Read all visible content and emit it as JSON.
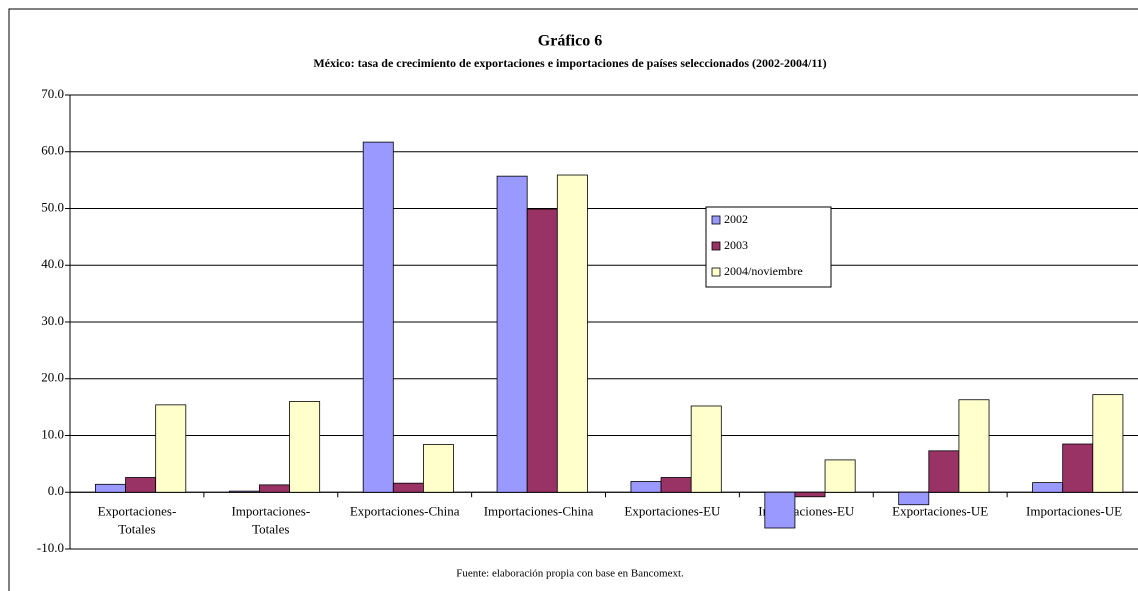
{
  "chart_data": {
    "type": "bar",
    "title": "Gráfico 6",
    "subtitle": "México: tasa de crecimiento de exportaciones e importaciones de países seleccionados (2002-2004/11)",
    "note": "Fuente: elaboración propia con base en Bancomext.",
    "categories": [
      "Exportaciones-\nTotales",
      "Importaciones-\nTotales",
      "Exportaciones-China",
      "Importaciones-China",
      "Exportaciones-EU",
      "Importaciones-EU",
      "Exportaciones-UE",
      "Importaciones-UE"
    ],
    "series": [
      {
        "name": "2002",
        "color": "#9999ff",
        "values": [
          1.4,
          0.2,
          61.7,
          55.7,
          1.9,
          -6.3,
          -2.2,
          1.7
        ]
      },
      {
        "name": "2003",
        "color": "#993366",
        "values": [
          2.6,
          1.3,
          1.6,
          49.9,
          2.6,
          -0.8,
          7.3,
          8.5
        ]
      },
      {
        "name": "2004/noviembre",
        "color": "#ffffcc",
        "values": [
          15.4,
          16.0,
          8.4,
          55.9,
          15.2,
          5.7,
          16.3,
          17.2
        ]
      }
    ],
    "ylim": [
      -10,
      70
    ],
    "yticks": [
      {
        "value": -10,
        "label": "-10.0"
      },
      {
        "value": 0,
        "label": "0.0"
      },
      {
        "value": 10,
        "label": "10.0"
      },
      {
        "value": 20,
        "label": "20.0"
      },
      {
        "value": 30,
        "label": "30.0"
      },
      {
        "value": 40,
        "label": "40.0"
      },
      {
        "value": 50,
        "label": "50.0"
      },
      {
        "value": 60,
        "label": "60.0"
      },
      {
        "value": 70,
        "label": "70.0"
      }
    ],
    "grid": true,
    "legend": "center"
  }
}
